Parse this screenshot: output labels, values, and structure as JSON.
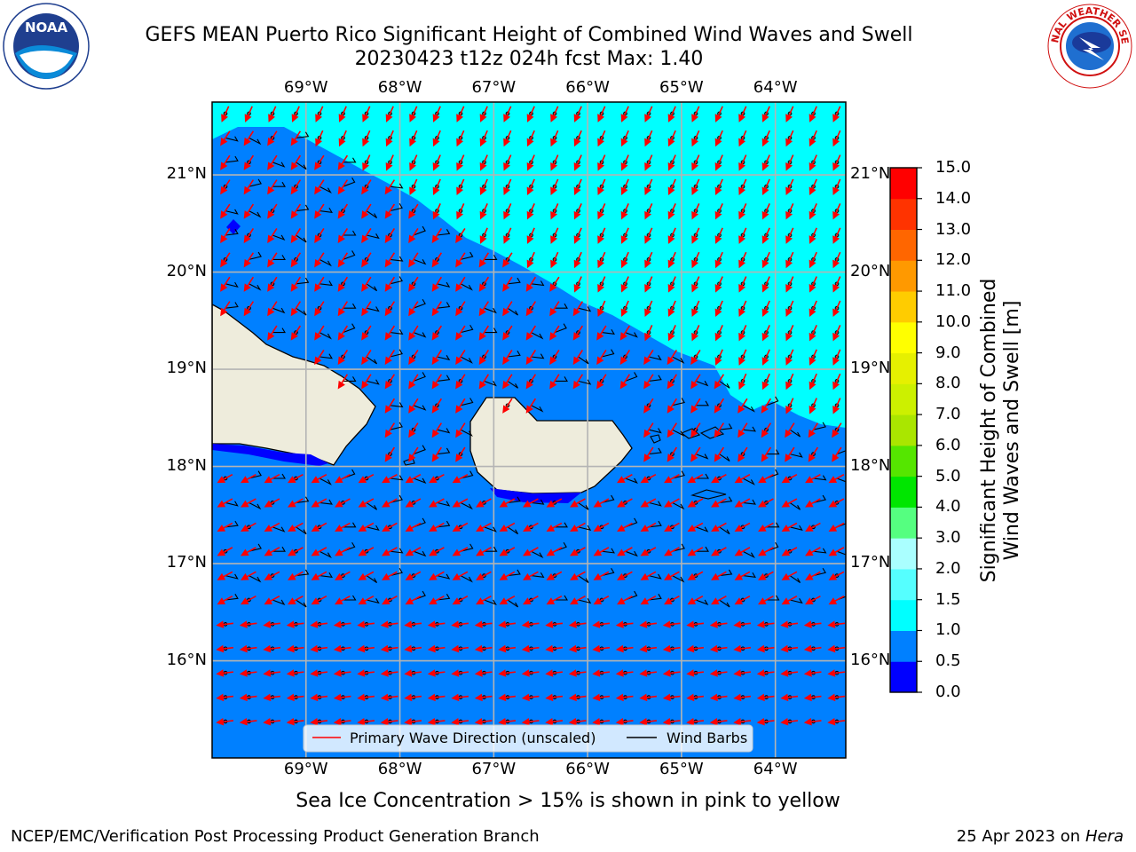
{
  "title": {
    "line1": "GEFS MEAN Puerto Rico Significant Height of Combined Wind Waves and Swell",
    "line2": "20230423 t12z 024h fcst   Max: 1.40"
  },
  "logos": {
    "left": {
      "text": "NOAA",
      "ring_text": "NATIONAL OCEANIC AND ATMOSPHERIC ADMINISTRATION · U.S. DEPARTMENT OF COMMERCE"
    },
    "right": {
      "ring_text": "NATIONAL WEATHER SERVICE"
    }
  },
  "map": {
    "lon_labels": [
      "69°W",
      "68°W",
      "67°W",
      "66°W",
      "65°W",
      "64°W"
    ],
    "lon_values": [
      -69,
      -68,
      -67,
      -66,
      -65,
      -64
    ],
    "lat_labels": [
      "21°N",
      "20°N",
      "19°N",
      "18°N",
      "17°N",
      "16°N"
    ],
    "lat_values": [
      21,
      20,
      19,
      18,
      17,
      16
    ],
    "lon_range": [
      -70,
      -63.25
    ],
    "lat_range": [
      15,
      21.75
    ],
    "legend": {
      "wave": "Primary Wave Direction (unscaled)",
      "barb": "Wind Barbs"
    },
    "colors": {
      "ocean_low": "#0000ff",
      "ocean_mid": "#0080ff",
      "ocean_high": "#00ffff",
      "land": "#eeecdc",
      "arrow": "#ff0000"
    }
  },
  "colorbar": {
    "title_line1": "Significant Height of Combined",
    "title_line2": "Wind Waves and Swell [m]",
    "ticks": [
      "0.0",
      "0.5",
      "1.0",
      "1.5",
      "2.0",
      "3.0",
      "4.0",
      "5.0",
      "6.0",
      "7.0",
      "8.0",
      "9.0",
      "10.0",
      "11.0",
      "12.0",
      "13.0",
      "14.0",
      "15.0"
    ],
    "colors": [
      "#0000ff",
      "#0080ff",
      "#00ffff",
      "#55ffff",
      "#aaffff",
      "#55ff80",
      "#00e600",
      "#55e600",
      "#aae600",
      "#ccf000",
      "#e6f000",
      "#ffff00",
      "#ffcc00",
      "#ff9900",
      "#ff6600",
      "#ff3300",
      "#ff0000"
    ]
  },
  "subtitle": "Sea Ice Concentration > 15% is shown in pink to yellow",
  "footer": {
    "left": "NCEP/EMC/Verification Post Processing Product Generation Branch",
    "right_prefix": "25 Apr 2023 on ",
    "right_host": "Hera"
  }
}
